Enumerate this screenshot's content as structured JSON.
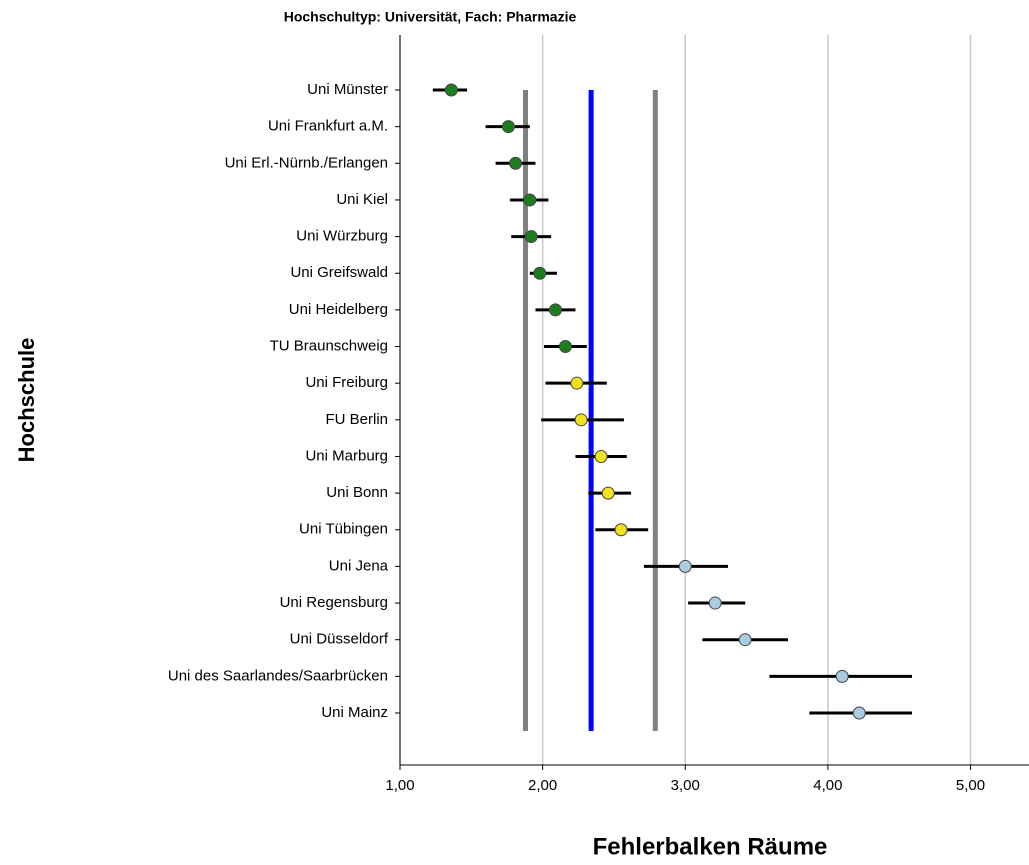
{
  "chart_data": {
    "type": "dot-errorbar",
    "title": "Hochschultyp: Universität, Fach: Pharmazie",
    "x_label": "Fehlerbalken Räume",
    "y_label": "Hochschule",
    "categories": [
      "Uni Münster",
      "Uni Frankfurt a.M.",
      "Uni Erl.-Nürnb./Erlangen",
      "Uni Kiel",
      "Uni Würzburg",
      "Uni Greifswald",
      "Uni Heidelberg",
      "TU Braunschweig",
      "Uni Freiburg",
      "FU Berlin",
      "Uni Marburg",
      "Uni Bonn",
      "Uni Tübingen",
      "Uni Jena",
      "Uni Regensburg",
      "Uni Düsseldorf",
      "Uni des Saarlandes/Saarbrücken",
      "Uni Mainz"
    ],
    "values": [
      1.36,
      1.76,
      1.81,
      1.91,
      1.92,
      1.98,
      2.09,
      2.16,
      2.24,
      2.27,
      2.41,
      2.46,
      2.55,
      3.0,
      3.21,
      3.42,
      4.1,
      4.22
    ],
    "lower": [
      1.23,
      1.6,
      1.67,
      1.77,
      1.78,
      1.91,
      1.95,
      2.01,
      2.02,
      1.99,
      2.23,
      2.32,
      2.37,
      2.71,
      3.02,
      3.12,
      3.59,
      3.87
    ],
    "upper": [
      1.47,
      1.91,
      1.95,
      2.04,
      2.06,
      2.1,
      2.23,
      2.31,
      2.45,
      2.57,
      2.59,
      2.62,
      2.74,
      3.3,
      3.42,
      3.72,
      4.59,
      4.59
    ],
    "colors": [
      "#1b7d1b",
      "#1b7d1b",
      "#1b7d1b",
      "#1b7d1b",
      "#1b7d1b",
      "#1b7d1b",
      "#1b7d1b",
      "#1b7d1b",
      "#f2e21e",
      "#f2e21e",
      "#f2e21e",
      "#f2e21e",
      "#f2e21e",
      "#a9cde0",
      "#a9cde0",
      "#a9cde0",
      "#a9cde0",
      "#a9cde0"
    ],
    "reference_lines": [
      {
        "value": 1.88,
        "color": "#808080"
      },
      {
        "value": 2.34,
        "color": "#0000ff"
      },
      {
        "value": 2.79,
        "color": "#808080"
      }
    ],
    "xlim": [
      1,
      5.41
    ],
    "xticks": [
      {
        "value": 1,
        "label": "1,00"
      },
      {
        "value": 2,
        "label": "2,00"
      },
      {
        "value": 3,
        "label": "3,00"
      },
      {
        "value": 4,
        "label": "4,00"
      },
      {
        "value": 5,
        "label": "5,00"
      }
    ],
    "grid": true
  }
}
